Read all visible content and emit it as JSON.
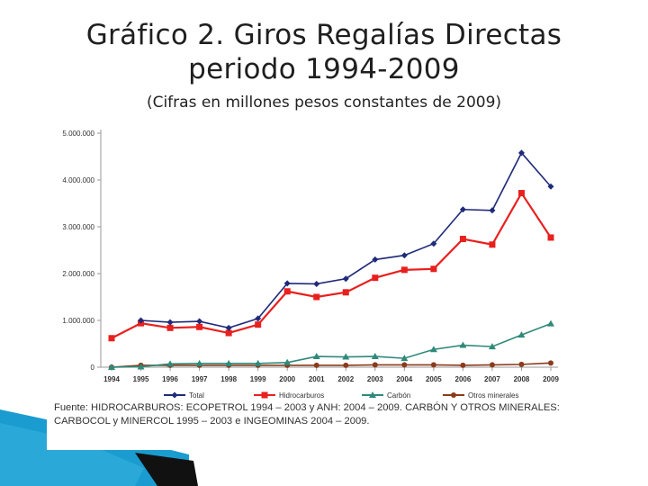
{
  "slide": {
    "title_line1": "Gráfico 2. Giros Regalías Directas",
    "title_line2": "periodo 1994-2009",
    "subtitle": "(Cifras en millones pesos constantes de 2009)",
    "source_note": "Fuente: HIDROCARBUROS: ECOPETROL 1994 – 2003 y ANH: 2004 – 2009. CARBÓN Y OTROS MINERALES: CARBOCOL y MINERCOL 1995 – 2003 e INGEOMINAS 2004 – 2009."
  },
  "chart_data": {
    "type": "line",
    "x": [
      "1994",
      "1995",
      "1996",
      "1997",
      "1998",
      "1999",
      "2000",
      "2001",
      "2002",
      "2003",
      "2004",
      "2005",
      "2006",
      "2007",
      "2008",
      "2009"
    ],
    "ylim": [
      0,
      5000000
    ],
    "y_ticks": [
      0,
      1000000,
      2000000,
      3000000,
      4000000,
      5000000
    ],
    "y_tick_labels": [
      "0",
      "1.000.000",
      "2.000.000",
      "3.000.000",
      "4.000.000",
      "5.000.000"
    ],
    "grid": false,
    "legend_position": "bottom",
    "series": [
      {
        "name": "Total",
        "color": "#1f2a7a",
        "marker": "diamond",
        "values": [
          null,
          1000000,
          960000,
          980000,
          840000,
          1040000,
          1790000,
          1780000,
          1890000,
          2300000,
          2390000,
          2640000,
          3370000,
          3350000,
          4580000,
          3860000
        ]
      },
      {
        "name": "Hidrocarburos",
        "color": "#e8201e",
        "marker": "square",
        "values": [
          620000,
          940000,
          840000,
          860000,
          730000,
          910000,
          1620000,
          1500000,
          1600000,
          1910000,
          2080000,
          2100000,
          2740000,
          2620000,
          3720000,
          2770000
        ]
      },
      {
        "name": "Carbón",
        "color": "#2f8a7a",
        "marker": "triangle",
        "values": [
          0,
          10000,
          70000,
          80000,
          80000,
          80000,
          100000,
          230000,
          220000,
          230000,
          190000,
          380000,
          470000,
          440000,
          690000,
          930000
        ]
      },
      {
        "name": "Otros minerales",
        "color": "#8b3a1a",
        "marker": "circle",
        "values": [
          0,
          40000,
          40000,
          40000,
          40000,
          40000,
          40000,
          40000,
          40000,
          50000,
          50000,
          50000,
          40000,
          50000,
          60000,
          90000
        ]
      }
    ]
  }
}
